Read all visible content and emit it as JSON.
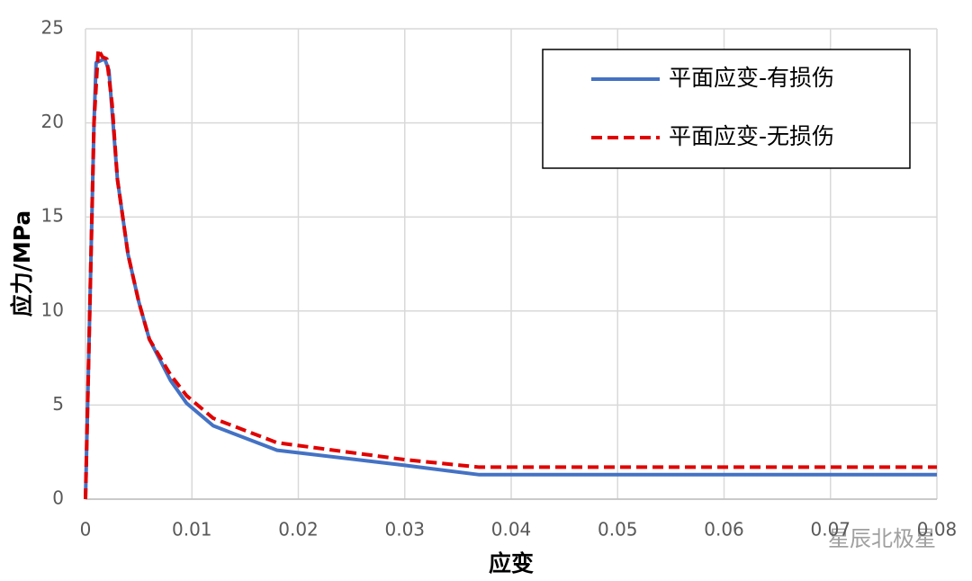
{
  "chart_data": {
    "type": "line",
    "xlabel": "应变",
    "ylabel": "应力/MPa",
    "xlim": [
      0,
      0.08
    ],
    "xticks": [
      0,
      0.01,
      0.02,
      0.03,
      0.04,
      0.05,
      0.06,
      0.07,
      0.08
    ],
    "ylim": [
      0,
      25
    ],
    "yticks": [
      0,
      5,
      10,
      15,
      20,
      25
    ],
    "grid": true,
    "legend": "upper right",
    "watermark": "星辰北极星",
    "series": [
      {
        "name": "平面应变-有损伤",
        "color": "#4472c4",
        "dashed": false,
        "x": [
          0,
          0.0008,
          0.001,
          0.0018,
          0.0022,
          0.003,
          0.004,
          0.005,
          0.006,
          0.008,
          0.0095,
          0.012,
          0.018,
          0.03,
          0.037,
          0.08
        ],
        "values": [
          0,
          20,
          23.2,
          23.4,
          22.8,
          17,
          13,
          10.5,
          8.5,
          6.3,
          5.1,
          3.9,
          2.6,
          1.8,
          1.3,
          1.3
        ]
      },
      {
        "name": "平面应变-无损伤",
        "color": "#e00000",
        "dashed": true,
        "x": [
          0,
          0.0008,
          0.0012,
          0.0016,
          0.002,
          0.0025,
          0.003,
          0.004,
          0.005,
          0.006,
          0.008,
          0.0095,
          0.012,
          0.018,
          0.03,
          0.037,
          0.08
        ],
        "values": [
          0,
          20,
          23.9,
          23.5,
          23.4,
          21,
          17,
          13,
          10.5,
          8.5,
          6.6,
          5.5,
          4.3,
          3.0,
          2.1,
          1.7,
          1.7
        ]
      }
    ]
  }
}
